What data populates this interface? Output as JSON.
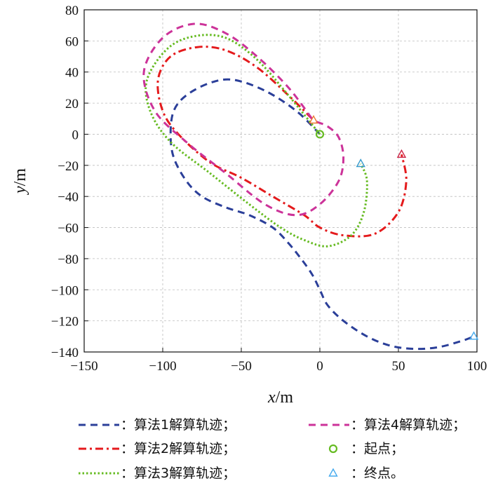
{
  "chart_data": {
    "type": "line",
    "xlabel": "x/m",
    "ylabel": "y/m",
    "xlim": [
      -150,
      100
    ],
    "ylim": [
      -140,
      80
    ],
    "xticks": [
      -150,
      -100,
      -50,
      0,
      50,
      100
    ],
    "yticks": [
      -140,
      -120,
      -100,
      -80,
      -60,
      -40,
      -20,
      0,
      20,
      40,
      60,
      80
    ],
    "grid": true,
    "series": [
      {
        "name": "算法1解算轨迹",
        "color": "#2b3f99",
        "style": "dashed",
        "x": [
          0,
          -15,
          -35,
          -55,
          -70,
          -85,
          -93,
          -95,
          -93,
          -85,
          -75,
          -60,
          -45,
          -30,
          -20,
          -12,
          -5,
          0,
          5,
          15,
          30,
          45,
          60,
          75,
          90,
          98
        ],
        "y": [
          0,
          15,
          28,
          35,
          33,
          25,
          15,
          0,
          -15,
          -30,
          -40,
          -47,
          -52,
          -60,
          -70,
          -80,
          -90,
          -100,
          -110,
          -120,
          -130,
          -136,
          -138,
          -137,
          -133,
          -130
        ]
      },
      {
        "name": "算法2解算轨迹",
        "color": "#e41a1c",
        "style": "dashdot",
        "x": [
          -5,
          -20,
          -40,
          -60,
          -78,
          -95,
          -103,
          -100,
          -90,
          -70,
          -50,
          -30,
          -10,
          0,
          15,
          35,
          50,
          55,
          52
        ],
        "y": [
          10,
          25,
          43,
          54,
          56,
          50,
          35,
          15,
          0,
          -18,
          -28,
          -40,
          -52,
          -60,
          -65,
          -64,
          -50,
          -30,
          -13
        ]
      },
      {
        "name": "算法3解算轨迹",
        "color": "#66bb22",
        "style": "dotted",
        "x": [
          0,
          -20,
          -40,
          -60,
          -80,
          -97,
          -110,
          -108,
          -95,
          -70,
          -45,
          -25,
          -10,
          5,
          20,
          28,
          30,
          26
        ],
        "y": [
          0,
          25,
          48,
          62,
          63,
          55,
          35,
          15,
          -5,
          -25,
          -45,
          -60,
          -68,
          -72,
          -65,
          -50,
          -30,
          -19
        ]
      },
      {
        "name": "算法4解算轨迹",
        "color": "#cc3399",
        "style": "dashed",
        "x": [
          -5,
          -20,
          -40,
          -60,
          -80,
          -100,
          -112,
          -105,
          -85,
          -60,
          -35,
          -15,
          0,
          12,
          15,
          12,
          5,
          -2,
          -3
        ],
        "y": [
          10,
          30,
          50,
          65,
          71,
          62,
          40,
          15,
          -5,
          -25,
          -45,
          -52,
          -45,
          -30,
          -15,
          -2,
          5,
          8,
          9
        ]
      }
    ],
    "start_points": [
      {
        "x": 0,
        "y": 0,
        "color": "#66bb22"
      }
    ],
    "end_points": [
      {
        "x": 98,
        "y": -130,
        "color": "#44aaee"
      },
      {
        "x": 52,
        "y": -13,
        "color": "#cc2244"
      },
      {
        "x": 26,
        "y": -19,
        "color": "#3399cc"
      },
      {
        "x": -4,
        "y": 9,
        "color": "#ee7733"
      }
    ],
    "legend": [
      {
        "symbol": "dashed",
        "color": "#2b3f99",
        "text": "：算法1解算轨迹；"
      },
      {
        "symbol": "dashed",
        "color": "#cc3399",
        "text": "：算法4解算轨迹；"
      },
      {
        "symbol": "dashdot",
        "color": "#e41a1c",
        "text": "：算法2解算轨迹；"
      },
      {
        "symbol": "circle",
        "color": "#66bb22",
        "text": "：起点；"
      },
      {
        "symbol": "dotted",
        "color": "#66bb22",
        "text": "：算法3解算轨迹；"
      },
      {
        "symbol": "triangle",
        "color": "#44aaee",
        "text": "：终点。"
      }
    ]
  }
}
